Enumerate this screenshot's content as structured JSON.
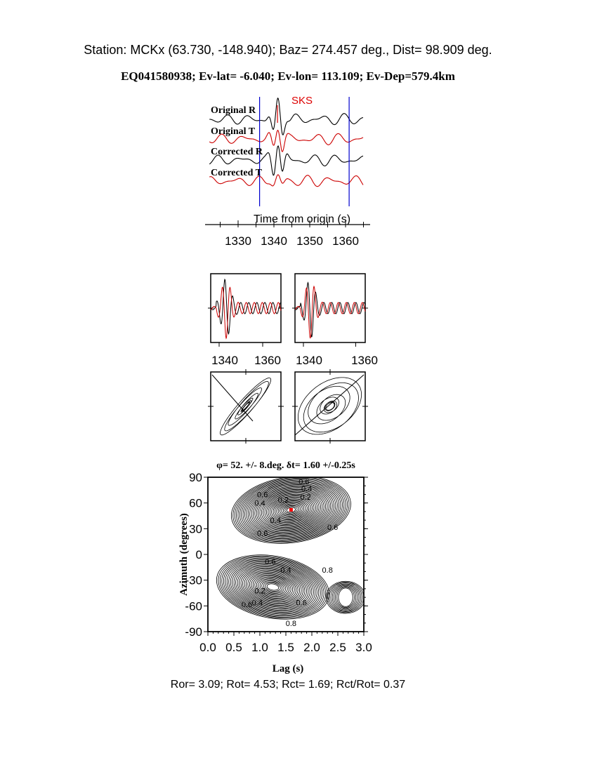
{
  "header": {
    "station_line": "Station: MCKx (63.730, -148.940); Baz=  274.457 deg., Dist=   98.909 deg.",
    "event_line": "EQ041580938; Ev-lat=  -6.040; Ev-lon= 113.109; Ev-Dep=579.4km"
  },
  "traces": {
    "phase_label": "SKS",
    "labels": [
      "Original R",
      "Original T",
      "Corrected R",
      "Corrected T"
    ],
    "colors": {
      "R": "#000000",
      "T": "#cc0000",
      "window": "#0000cc",
      "phase": "#dd0000"
    },
    "window_start": 1336,
    "window_end": 1361,
    "xlabel": "Time from origin (s)",
    "xticks": [
      "1330",
      "1340",
      "1350",
      "1360"
    ]
  },
  "zoom_panels": {
    "xticks": [
      "1340",
      "1360",
      "1340",
      "1360"
    ]
  },
  "chart_data": {
    "type": "contour",
    "title": "φ= 52. +/- 8.deg. δt= 1.60 +/-0.25s",
    "xlabel": "Lag (s)",
    "ylabel": "Azimuth (degrees)",
    "xlim": [
      0.0,
      3.0
    ],
    "ylim": [
      -90,
      90
    ],
    "xticks": [
      "0.0",
      "0.5",
      "1.0",
      "1.5",
      "2.0",
      "2.5",
      "3.0"
    ],
    "yticks": [
      "90",
      "60",
      "30",
      "0",
      "-30",
      "-60",
      "-90"
    ],
    "best_fit": {
      "lag": 1.6,
      "azimuth": 52,
      "color": "#ff0000"
    },
    "contour_labels": [
      "0.6",
      "0.4",
      "0.2",
      "0.6",
      "0.4",
      "0.2",
      "0.4",
      "0.6",
      "0.6",
      "0.6",
      "0.4",
      "0.2",
      "0.8",
      "0.6",
      "0.4",
      "0.6",
      "0.8"
    ]
  },
  "footer": {
    "ratios": "Ror= 3.09; Rot= 4.53; Rct= 1.69; Rct/Rot= 0.37"
  }
}
